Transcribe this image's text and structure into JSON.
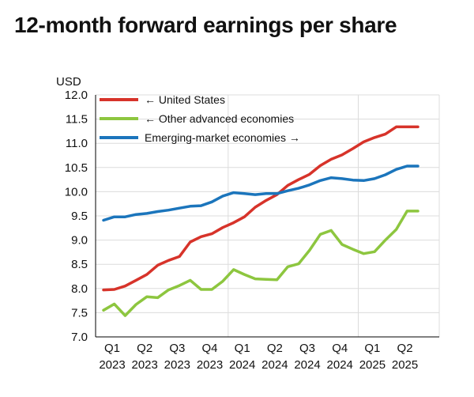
{
  "colors": {
    "united_states": "#d7332a",
    "other_advanced": "#8dc63f",
    "emerging": "#1b75bc",
    "grid": "#dcdcdc",
    "axis": "#000000"
  },
  "chart_data": {
    "type": "line",
    "title": "12-month forward earnings per share",
    "ylabel": "USD",
    "ylim": [
      7.0,
      12.0
    ],
    "y_ticks": [
      "7.0",
      "7.5",
      "8.0",
      "8.5",
      "9.0",
      "9.5",
      "10.0",
      "10.5",
      "11.0",
      "11.5",
      "12.0"
    ],
    "x_ticks": [
      {
        "q": "Q1",
        "y": "2023"
      },
      {
        "q": "Q2",
        "y": "2023"
      },
      {
        "q": "Q3",
        "y": "2023"
      },
      {
        "q": "Q4",
        "y": "2023"
      },
      {
        "q": "Q1",
        "y": "2024"
      },
      {
        "q": "Q2",
        "y": "2024"
      },
      {
        "q": "Q3",
        "y": "2024"
      },
      {
        "q": "Q4",
        "y": "2024"
      },
      {
        "q": "Q1",
        "y": "2025"
      },
      {
        "q": "Q2",
        "y": "2025"
      }
    ],
    "x": [
      "2023-01",
      "2023-02",
      "2023-03",
      "2023-04",
      "2023-05",
      "2023-06",
      "2023-07",
      "2023-08",
      "2023-09",
      "2023-10",
      "2023-11",
      "2023-12",
      "2024-01",
      "2024-02",
      "2024-03",
      "2024-04",
      "2024-05",
      "2024-06",
      "2024-07",
      "2024-08",
      "2024-09",
      "2024-10",
      "2024-11",
      "2024-12",
      "2025-01",
      "2025-02",
      "2025-03",
      "2025-04",
      "2025-05",
      "2025-06"
    ],
    "grid": true,
    "legend_position": "top-left",
    "series": [
      {
        "name": "← United States",
        "color": "#d7332a",
        "values": [
          7.97,
          7.98,
          8.05,
          8.17,
          8.29,
          8.48,
          8.58,
          8.66,
          8.96,
          9.07,
          9.13,
          9.26,
          9.36,
          9.48,
          9.68,
          9.82,
          9.94,
          10.13,
          10.25,
          10.36,
          10.54,
          10.67,
          10.76,
          10.89,
          11.03,
          11.12,
          11.19,
          11.34,
          11.34,
          11.34
        ]
      },
      {
        "name": "← Other advanced economies",
        "color": "#8dc63f",
        "values": [
          7.55,
          7.68,
          7.44,
          7.67,
          7.83,
          7.81,
          7.97,
          8.06,
          8.17,
          7.98,
          7.98,
          8.15,
          8.39,
          8.29,
          8.2,
          8.19,
          8.18,
          8.45,
          8.51,
          8.79,
          9.12,
          9.2,
          8.91,
          8.81,
          8.72,
          8.76,
          9.0,
          9.22,
          9.6,
          9.6
        ]
      },
      {
        "name": "Emerging-market economies →",
        "color": "#1b75bc",
        "values": [
          9.41,
          9.48,
          9.48,
          9.53,
          9.55,
          9.59,
          9.62,
          9.66,
          9.7,
          9.71,
          9.79,
          9.91,
          9.98,
          9.96,
          9.94,
          9.96,
          9.96,
          10.02,
          10.07,
          10.14,
          10.23,
          10.29,
          10.27,
          10.24,
          10.23,
          10.27,
          10.35,
          10.46,
          10.53,
          10.53
        ]
      }
    ]
  }
}
